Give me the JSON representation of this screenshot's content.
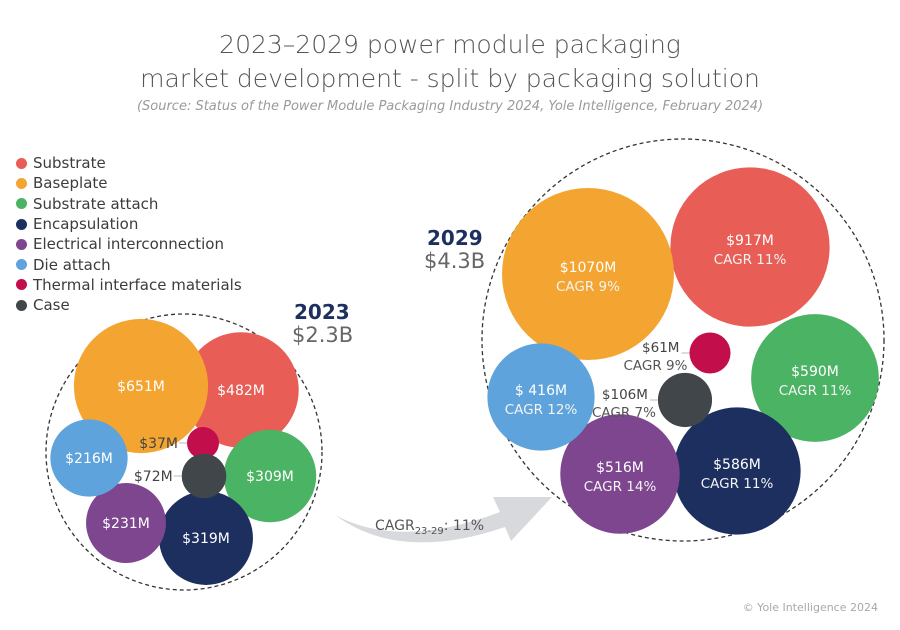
{
  "header": {
    "title_line1": "2023–2029 power module packaging",
    "title_line2": "market development - split by packaging solution",
    "source": "(Source: Status of the Power Module Packaging Industry 2024, Yole Intelligence, February 2024)"
  },
  "legend": [
    {
      "label": "Substrate",
      "color": "#e85d55"
    },
    {
      "label": "Baseplate",
      "color": "#f4a531"
    },
    {
      "label": "Substrate attach",
      "color": "#4bb364"
    },
    {
      "label": "Encapsulation",
      "color": "#1c2f5f"
    },
    {
      "label": "Electrical interconnection",
      "color": "#7f4690"
    },
    {
      "label": "Die attach",
      "color": "#5ea3dc"
    },
    {
      "label": "Thermal interface materials",
      "color": "#c20f4b"
    },
    {
      "label": "Case",
      "color": "#41464b"
    }
  ],
  "year2023": {
    "year": "2023",
    "total": "$2.3B"
  },
  "year2029": {
    "year": "2029",
    "total": "$4.3B"
  },
  "arrow": {
    "prefix": "CAGR",
    "sub": "23-29",
    "suffix": ": 11%"
  },
  "footer": {
    "copyright": "© Yole Intelligence 2024"
  },
  "chart_data": {
    "type": "bubble",
    "title": "2023–2029 power module packaging market development - split by packaging solution",
    "unit": "$M",
    "overall_cagr_2023_2029": "11%",
    "totals": {
      "2023": "$2.3B",
      "2029": "$4.3B"
    },
    "series": [
      {
        "name": "Substrate",
        "value_2023": 482,
        "value_2029": 917,
        "cagr": "11%",
        "label_2023": "$482M",
        "label_2029": "$917M",
        "cagr_label": "CAGR 11%"
      },
      {
        "name": "Baseplate",
        "value_2023": 651,
        "value_2029": 1070,
        "cagr": "9%",
        "label_2023": "$651M",
        "label_2029": "$1070M",
        "cagr_label": "CAGR 9%"
      },
      {
        "name": "Substrate attach",
        "value_2023": 309,
        "value_2029": 590,
        "cagr": "11%",
        "label_2023": "$309M",
        "label_2029": "$590M",
        "cagr_label": "CAGR 11%"
      },
      {
        "name": "Encapsulation",
        "value_2023": 319,
        "value_2029": 586,
        "cagr": "11%",
        "label_2023": "$319M",
        "label_2029": "$586M",
        "cagr_label": "CAGR 11%"
      },
      {
        "name": "Electrical interconnection",
        "value_2023": 231,
        "value_2029": 516,
        "cagr": "14%",
        "label_2023": "$231M",
        "label_2029": "$516M",
        "cagr_label": "CAGR 14%"
      },
      {
        "name": "Die attach",
        "value_2023": 216,
        "value_2029": 416,
        "cagr": "12%",
        "label_2023": "$216M",
        "label_2029": "$ 416M",
        "cagr_label": "CAGR 12%"
      },
      {
        "name": "Thermal interface materials",
        "value_2023": 37,
        "value_2029": 61,
        "cagr": "9%",
        "label_2023": "$37M",
        "label_2029": "$61M",
        "cagr_label": "CAGR 9%"
      },
      {
        "name": "Case",
        "value_2023": 72,
        "value_2029": 106,
        "cagr": "7%",
        "label_2023": "$72M",
        "label_2029": "$106M",
        "cagr_label": "CAGR 7%"
      }
    ]
  }
}
